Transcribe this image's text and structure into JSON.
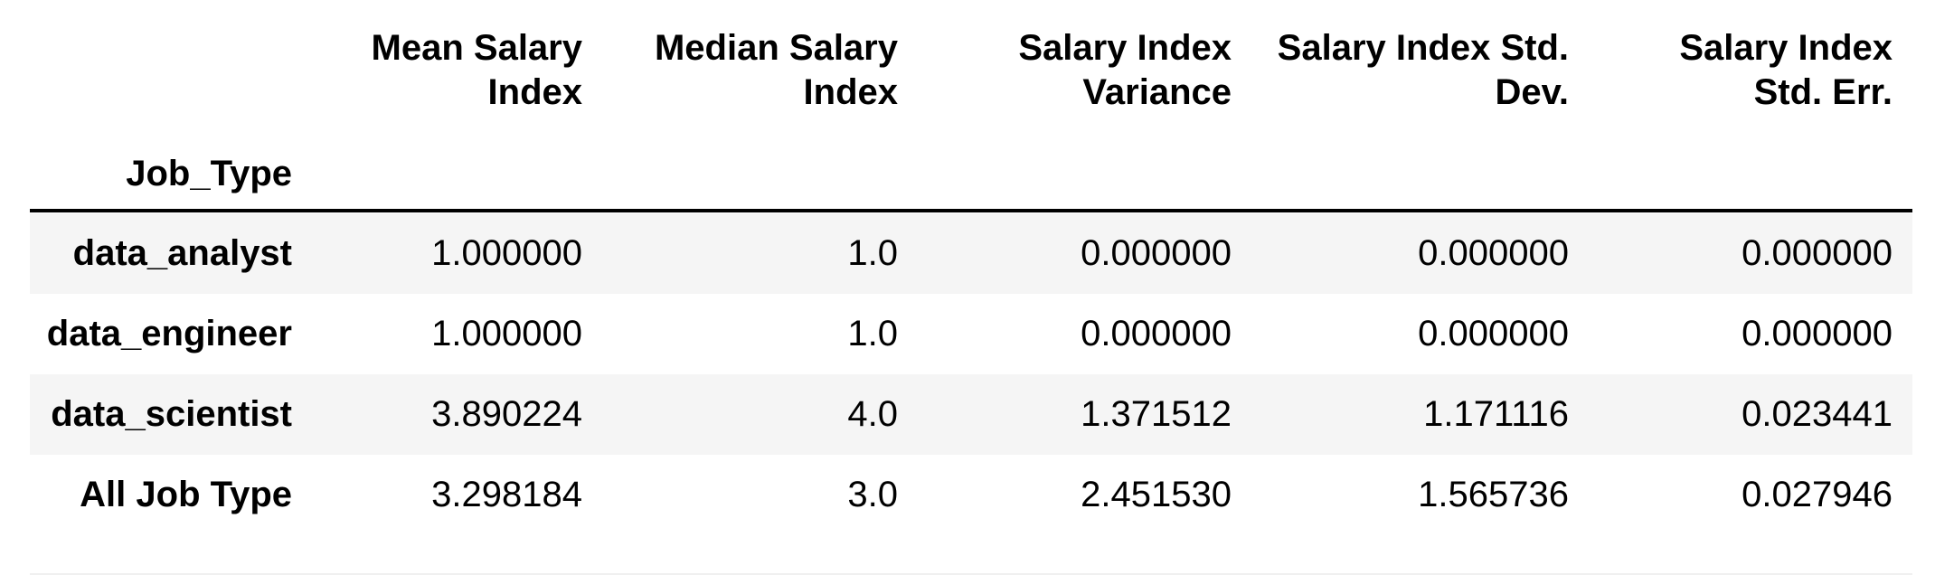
{
  "table": {
    "columns": [
      {
        "line1": "Mean Salary",
        "line2": "Index"
      },
      {
        "line1": "Median Salary",
        "line2": "Index"
      },
      {
        "line1": "Salary Index",
        "line2": "Variance"
      },
      {
        "line1": "Salary Index Std.",
        "line2": "Dev."
      },
      {
        "line1": "Salary Index",
        "line2": "Std. Err."
      }
    ],
    "index_name": "Job_Type",
    "rows": [
      {
        "index": "data_analyst",
        "values": [
          "1.000000",
          "1.0",
          "0.000000",
          "0.000000",
          "0.000000"
        ]
      },
      {
        "index": "data_engineer",
        "values": [
          "1.000000",
          "1.0",
          "0.000000",
          "0.000000",
          "0.000000"
        ]
      },
      {
        "index": "data_scientist",
        "values": [
          "3.890224",
          "4.0",
          "1.371512",
          "1.171116",
          "0.023441"
        ]
      },
      {
        "index": "All Job Type",
        "values": [
          "3.298184",
          "3.0",
          "2.451530",
          "1.565736",
          "0.027946"
        ]
      }
    ]
  },
  "colors": {
    "text": "#000000",
    "row_shade": "#f5f5f5",
    "background": "#ffffff",
    "rule": "#000000"
  }
}
